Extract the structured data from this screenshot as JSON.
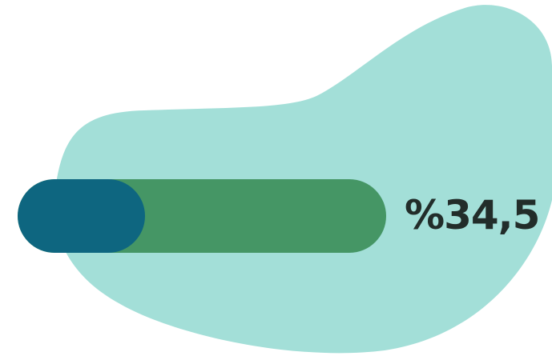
{
  "progress": {
    "label": "%34,5",
    "fill_fraction": 0.345
  },
  "colors": {
    "blob": "#a3dfd8",
    "track": "#459665",
    "fill": "#0e6680",
    "text": "#222d2a"
  }
}
